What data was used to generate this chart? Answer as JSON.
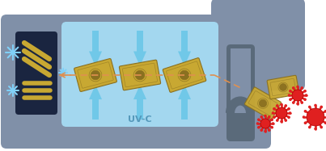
{
  "bg_color": "#ffffff",
  "machine_body_color": "#8090a8",
  "uv_chamber_color": "#a8e0f8",
  "lamp_box_color": "#1a2540",
  "lamp_lines_color": "#c8a832",
  "arrow_color": "#70c8e8",
  "arrow_fill": "#ffffff",
  "banknote_color": "#c8a832",
  "banknote_border": "#8a7020",
  "banknote_shadow": "#a08828",
  "dashed_line_color": "#e09050",
  "virus_color": "#e02020",
  "text_uvc": "UV-C",
  "text_color": "#5599bb",
  "sparkle_color": "#80d0f8",
  "slot_color": "#5a6a7a"
}
